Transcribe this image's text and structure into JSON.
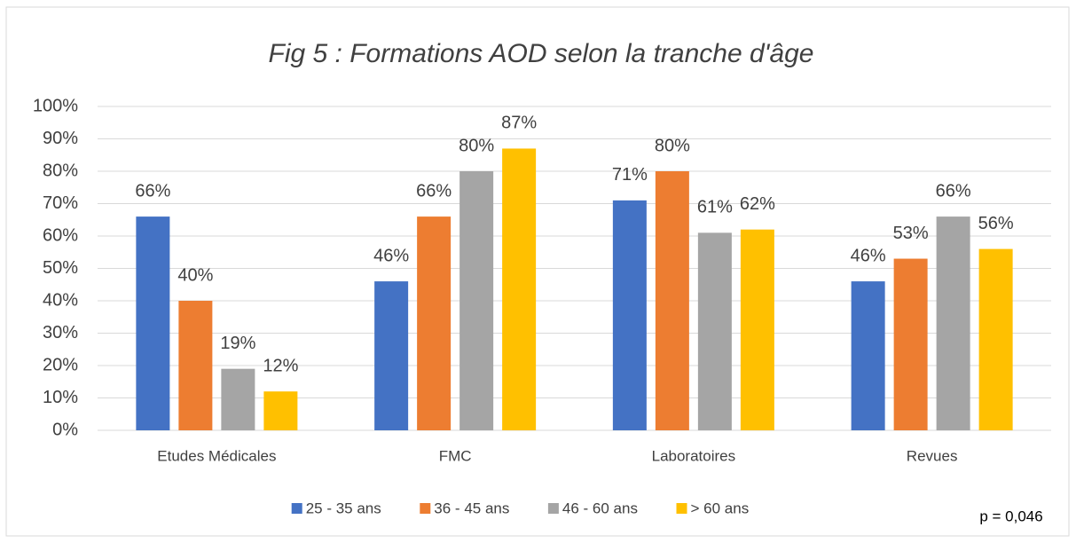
{
  "chart_data": {
    "type": "bar",
    "title": "Fig 5 : Formations AOD selon la tranche d'âge",
    "categories": [
      "Etudes Médicales",
      "FMC",
      "Laboratoires",
      "Revues"
    ],
    "series": [
      {
        "name": "25 - 35 ans",
        "color": "#4472c4",
        "values": [
          66,
          46,
          71,
          46
        ],
        "value_labels": [
          "66%",
          "46%",
          "71%",
          "46%"
        ]
      },
      {
        "name": "36 - 45 ans",
        "color": "#ed7d31",
        "values": [
          40,
          66,
          80,
          53
        ],
        "value_labels": [
          "40%",
          "66%",
          "80%",
          "53%"
        ]
      },
      {
        "name": "46 - 60 ans",
        "color": "#a5a5a5",
        "values": [
          19,
          80,
          61,
          66
        ],
        "value_labels": [
          "19%",
          "80%",
          "61%",
          "66%"
        ]
      },
      {
        "name": "> 60 ans",
        "color": "#ffc000",
        "values": [
          12,
          87,
          62,
          56
        ],
        "value_labels": [
          "12%",
          "87%",
          "62%",
          "56%"
        ]
      }
    ],
    "ylim": [
      0,
      100
    ],
    "yticks": [
      {
        "value": 0,
        "label": "0%"
      },
      {
        "value": 10,
        "label": "10%"
      },
      {
        "value": 20,
        "label": "20%"
      },
      {
        "value": 30,
        "label": "30%"
      },
      {
        "value": 40,
        "label": "40%"
      },
      {
        "value": 50,
        "label": "50%"
      },
      {
        "value": 60,
        "label": "60%"
      },
      {
        "value": 70,
        "label": "70%"
      },
      {
        "value": 80,
        "label": "80%"
      },
      {
        "value": 90,
        "label": "90%"
      },
      {
        "value": 100,
        "label": "100%"
      }
    ],
    "grid": true,
    "legend": "bottom",
    "annotation": "p = 0,046"
  }
}
